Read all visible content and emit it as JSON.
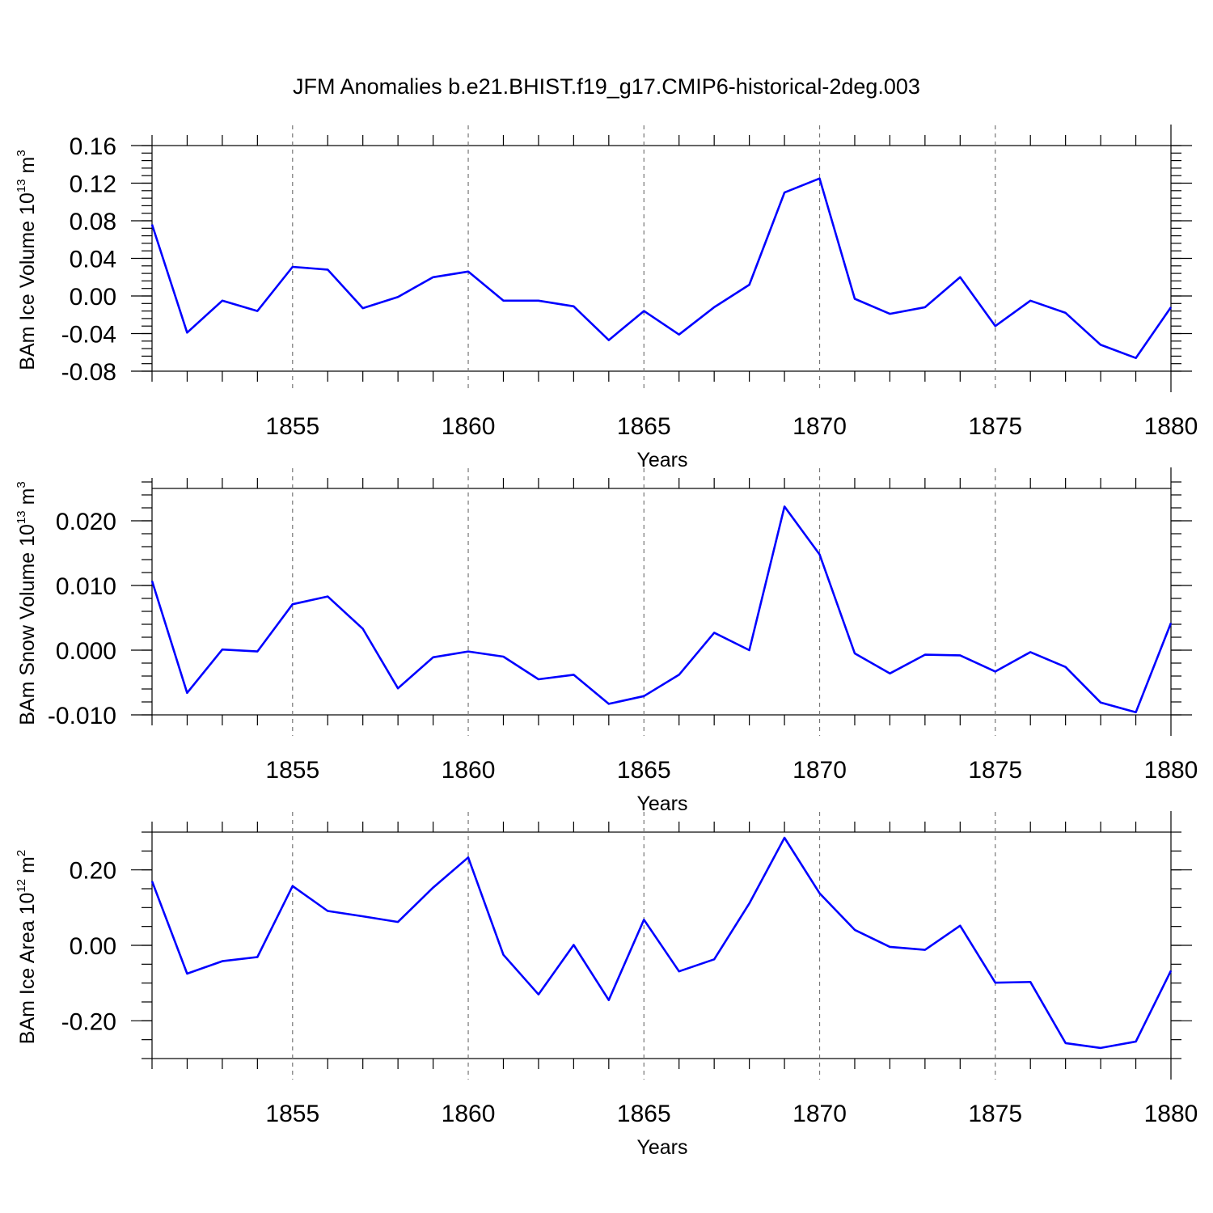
{
  "title": "JFM Anomalies b.e21.BHIST.f19_g17.CMIP6-historical-2deg.003",
  "colors": {
    "line": "#0000ff"
  },
  "chart_data": [
    {
      "type": "line",
      "ylabel": {
        "text": "BAm Ice Volume 10",
        "exp": "13",
        "unit": " m",
        "unit_exp": "3"
      },
      "xlabel": "Years",
      "xlim": [
        1851,
        1880
      ],
      "ylim": [
        -0.08,
        0.16
      ],
      "xticks": [
        1855,
        1860,
        1865,
        1870,
        1875,
        1880
      ],
      "yticks": [
        -0.08,
        -0.04,
        0.0,
        0.04,
        0.08,
        0.12,
        0.16
      ],
      "ytick_labels": [
        "-0.08",
        "-0.04",
        "0.00",
        "0.04",
        "0.08",
        "0.12",
        "0.16"
      ],
      "yminor_step": 0.008,
      "x": [
        1851,
        1852,
        1853,
        1854,
        1855,
        1856,
        1857,
        1858,
        1859,
        1860,
        1861,
        1862,
        1863,
        1864,
        1865,
        1866,
        1867,
        1868,
        1869,
        1870,
        1871,
        1872,
        1873,
        1874,
        1875,
        1876,
        1877,
        1878,
        1879,
        1880
      ],
      "values": [
        0.076,
        -0.039,
        -0.005,
        -0.016,
        0.031,
        0.028,
        -0.013,
        -0.001,
        0.02,
        0.026,
        -0.005,
        -0.005,
        -0.011,
        -0.047,
        -0.016,
        -0.041,
        -0.012,
        0.012,
        0.11,
        0.125,
        -0.003,
        -0.019,
        -0.012,
        0.02,
        -0.032,
        -0.005,
        -0.018,
        -0.052,
        -0.066,
        -0.012
      ]
    },
    {
      "type": "line",
      "ylabel": {
        "text": "BAm Snow Volume 10",
        "exp": "13",
        "unit": " m",
        "unit_exp": "3"
      },
      "xlabel": "Years",
      "xlim": [
        1851,
        1880
      ],
      "ylim": [
        -0.01,
        0.025
      ],
      "xticks": [
        1855,
        1860,
        1865,
        1870,
        1875,
        1880
      ],
      "yticks": [
        -0.01,
        0.0,
        0.01,
        0.02
      ],
      "ytick_labels": [
        "-0.010",
        "0.000",
        "0.010",
        "0.020"
      ],
      "yminor_step": 0.002,
      "x": [
        1851,
        1852,
        1853,
        1854,
        1855,
        1856,
        1857,
        1858,
        1859,
        1860,
        1861,
        1862,
        1863,
        1864,
        1865,
        1866,
        1867,
        1868,
        1869,
        1870,
        1871,
        1872,
        1873,
        1874,
        1875,
        1876,
        1877,
        1878,
        1879,
        1880
      ],
      "values": [
        0.0107,
        -0.0066,
        0.0001,
        -0.0002,
        0.0071,
        0.0083,
        0.0033,
        -0.0059,
        -0.0011,
        -0.0002,
        -0.001,
        -0.0045,
        -0.0038,
        -0.0083,
        -0.0071,
        -0.0038,
        0.0027,
        0.0,
        0.0222,
        0.0148,
        -0.0005,
        -0.0036,
        -0.0007,
        -0.0008,
        -0.0033,
        -0.0003,
        -0.0026,
        -0.0081,
        -0.0096,
        0.0042
      ]
    },
    {
      "type": "line",
      "ylabel": {
        "text": "BAm Ice Area 10",
        "exp": "12",
        "unit": " m",
        "unit_exp": "2"
      },
      "xlabel": "Years",
      "xlim": [
        1851,
        1880
      ],
      "ylim": [
        -0.3,
        0.3
      ],
      "xticks": [
        1855,
        1860,
        1865,
        1870,
        1875,
        1880
      ],
      "yticks": [
        -0.2,
        0.0,
        0.2
      ],
      "ytick_labels": [
        "-0.20",
        "0.00",
        "0.20"
      ],
      "yminor_step": 0.05,
      "x": [
        1851,
        1852,
        1853,
        1854,
        1855,
        1856,
        1857,
        1858,
        1859,
        1860,
        1861,
        1862,
        1863,
        1864,
        1865,
        1866,
        1867,
        1868,
        1869,
        1870,
        1871,
        1872,
        1873,
        1874,
        1875,
        1876,
        1877,
        1878,
        1879,
        1880
      ],
      "values": [
        0.17,
        -0.075,
        -0.042,
        -0.031,
        0.157,
        0.091,
        0.077,
        0.062,
        0.153,
        0.233,
        -0.025,
        -0.13,
        0.001,
        -0.145,
        0.068,
        -0.069,
        -0.037,
        0.111,
        0.285,
        0.138,
        0.041,
        -0.004,
        -0.012,
        0.052,
        -0.099,
        -0.097,
        -0.259,
        -0.272,
        -0.255,
        -0.067
      ]
    }
  ]
}
